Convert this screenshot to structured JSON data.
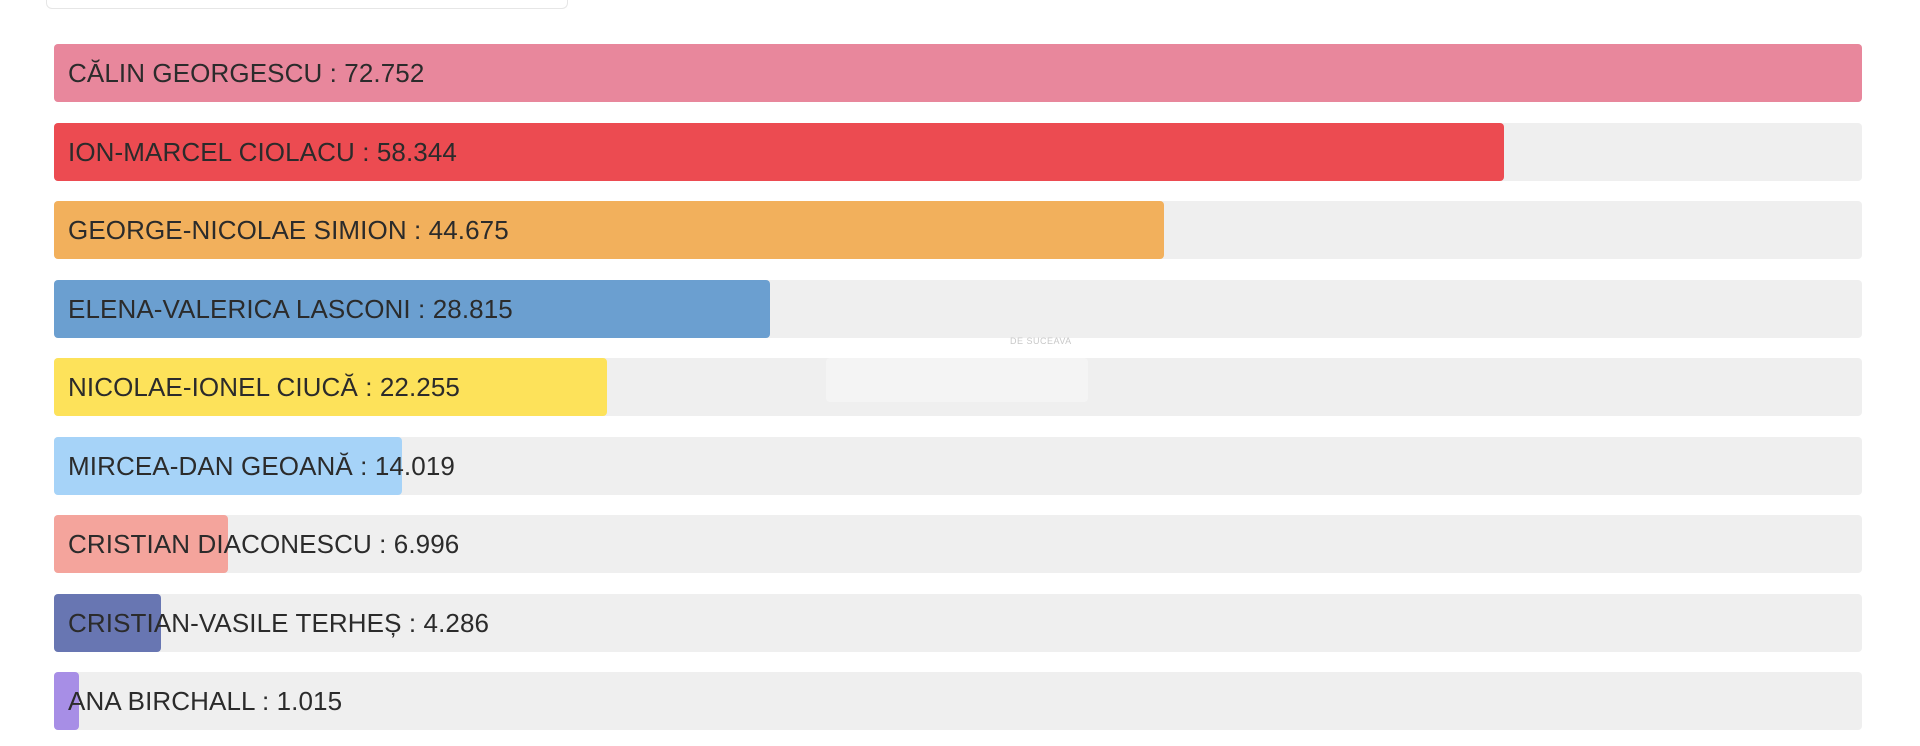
{
  "chart_data": {
    "type": "bar",
    "orientation": "horizontal",
    "max_value": 72.752,
    "grid": false,
    "categories": [
      "CĂLIN GEORGESCU",
      "ION-MARCEL CIOLACU",
      "GEORGE-NICOLAE SIMION",
      "ELENA-VALERICA LASCONI",
      "NICOLAE-IONEL CIUCĂ",
      "MIRCEA-DAN GEOANĂ",
      "CRISTIAN DIACONESCU",
      "CRISTIAN-VASILE TERHEȘ",
      "ANA BIRCHALL"
    ],
    "values": [
      72.752,
      58.344,
      44.675,
      28.815,
      22.255,
      14.019,
      6.996,
      4.286,
      1.015
    ],
    "labels": [
      "CĂLIN GEORGESCU : 72.752",
      "ION-MARCEL CIOLACU : 58.344",
      "GEORGE-NICOLAE SIMION : 44.675",
      "ELENA-VALERICA LASCONI : 28.815",
      "NICOLAE-IONEL CIUCĂ : 22.255",
      "MIRCEA-DAN GEOANĂ : 14.019",
      "CRISTIAN DIACONESCU : 6.996",
      "CRISTIAN-VASILE TERHEȘ : 4.286",
      "ANA BIRCHALL : 1.015"
    ],
    "colors": [
      "#e8879c",
      "#ec4b51",
      "#f2b05c",
      "#6b9fd0",
      "#fde25a",
      "#a6d3f8",
      "#f4a49c",
      "#6876b2",
      "#a78ee6"
    ],
    "track_color": "#efefef"
  },
  "watermark_text": "DE SUCEAVA"
}
